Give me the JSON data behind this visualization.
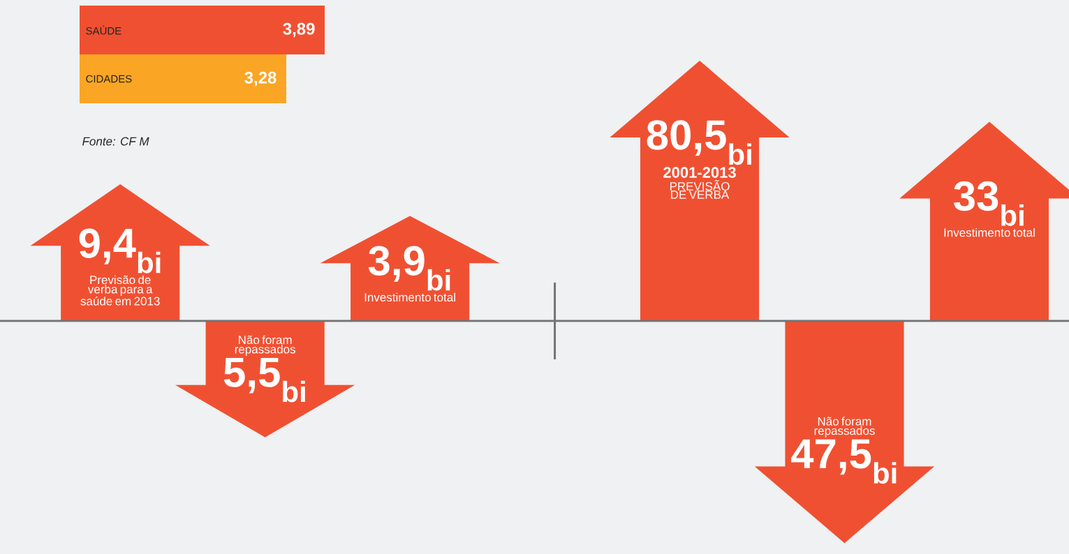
{
  "chart_data": [
    {
      "type": "bar",
      "orientation": "horizontal",
      "categories": [
        "SAÚDE",
        "CIDADES"
      ],
      "values": [
        3.89,
        3.28
      ],
      "colors": [
        "#f05032",
        "#fba524"
      ],
      "value_labels": [
        "3,89",
        "3,28"
      ],
      "annotations": [
        "Fonte: CF M"
      ]
    },
    {
      "type": "other",
      "categories": [
        "Previsão de verba para a saúde em 2013",
        "Não foram repassados",
        "Investimento total",
        null,
        "PREVISÃO DE VERBA",
        "Não foram repassados",
        "Investimento total"
      ],
      "series": [
        {
          "color": "#f05032",
          "values": [
            9.4,
            null,
            3.9,
            null,
            80.5,
            null,
            33
          ],
          "value_labels": [
            "9,4$_{bi}$",
            null,
            "3,9$_{bi}$",
            null,
            "80,5$_{bi}$",
            null,
            "33$_{bi}$"
          ]
        },
        {
          "color": "#f05032",
          "values": [
            null,
            5.5,
            null,
            null,
            null,
            47.5,
            null
          ],
          "value_labels": [
            null,
            "5,5$_{bi}$",
            null,
            null,
            null,
            "47,5$_{bi}$",
            null
          ]
        }
      ],
      "annotations": [
        {
          "text": "2001-2013",
          "x": "PREVISÃO DE VERBA"
        }
      ]
    }
  ]
}
